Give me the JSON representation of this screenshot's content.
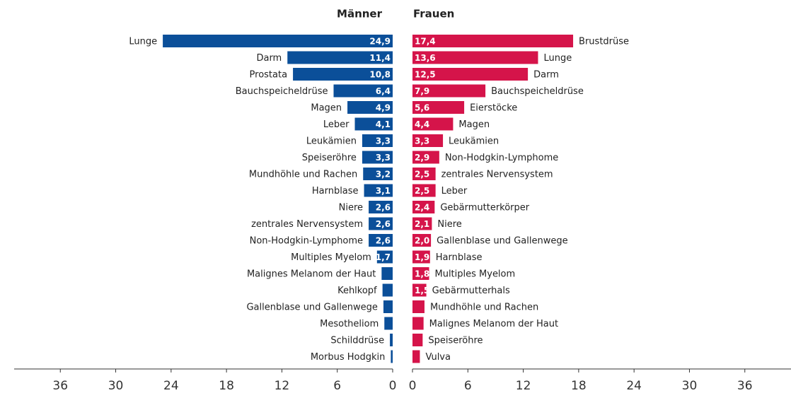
{
  "chart_data": [
    {
      "type": "bar",
      "orientation": "horizontal",
      "title": "Männer",
      "color": "#0b4f99",
      "categories": [
        "Lunge",
        "Darm",
        "Prostata",
        "Bauchspeicheldrüse",
        "Magen",
        "Leber",
        "Leukämien",
        "Speiseröhre",
        "Mundhöhle und Rachen",
        "Harnblase",
        "Niere",
        "zentrales Nervensystem",
        "Non-Hodgkin-Lymphome",
        "Multiples Myelom",
        "Malignes Melanom der Haut",
        "Kehlkopf",
        "Gallenblase und Gallenwege",
        "Mesotheliom",
        "Schilddrüse",
        "Morbus Hodgkin"
      ],
      "values": [
        24.9,
        11.4,
        10.8,
        6.4,
        4.9,
        4.1,
        3.3,
        3.3,
        3.2,
        3.1,
        2.6,
        2.6,
        2.6,
        1.7,
        1.2,
        1.1,
        1.0,
        0.9,
        0.3,
        0.2
      ],
      "value_labels": [
        "24,9",
        "11,4",
        "10,8",
        "6,4",
        "4,9",
        "4,1",
        "3,3",
        "3,3",
        "3,2",
        "3,1",
        "2,6",
        "2,6",
        "2,6",
        "1,7",
        null,
        null,
        null,
        null,
        null,
        null
      ],
      "xlim": [
        0,
        41
      ],
      "xticks": [
        0,
        6,
        12,
        18,
        24,
        30,
        36
      ]
    },
    {
      "type": "bar",
      "orientation": "horizontal",
      "title": "Frauen",
      "color": "#d5144a",
      "categories": [
        "Brustdrüse",
        "Lunge",
        "Darm",
        "Bauchspeicheldrüse",
        "Eierstöcke",
        "Magen",
        "Leukämien",
        "Non-Hodgkin-Lymphome",
        "zentrales Nervensystem",
        "Leber",
        "Gebärmutterkörper",
        "Niere",
        "Gallenblase und Gallenwege",
        "Harnblase",
        "Multiples Myelom",
        "Gebärmutterhals",
        "Mundhöhle und Rachen",
        "Malignes Melanom der Haut",
        "Speiseröhre",
        "Vulva"
      ],
      "values": [
        17.4,
        13.6,
        12.5,
        7.9,
        5.6,
        4.4,
        3.3,
        2.9,
        2.5,
        2.5,
        2.4,
        2.1,
        2.0,
        1.9,
        1.8,
        1.5,
        1.3,
        1.2,
        1.1,
        0.8
      ],
      "value_labels": [
        "17,4",
        "13,6",
        "12,5",
        "7,9",
        "5,6",
        "4,4",
        "3,3",
        "2,9",
        "2,5",
        "2,5",
        "2,4",
        "2,1",
        "2,0",
        "1,9",
        "1,8",
        "1,5",
        null,
        null,
        null,
        null
      ],
      "xlim": [
        0,
        41
      ],
      "xticks": [
        0,
        6,
        12,
        18,
        24,
        30,
        36
      ]
    }
  ]
}
